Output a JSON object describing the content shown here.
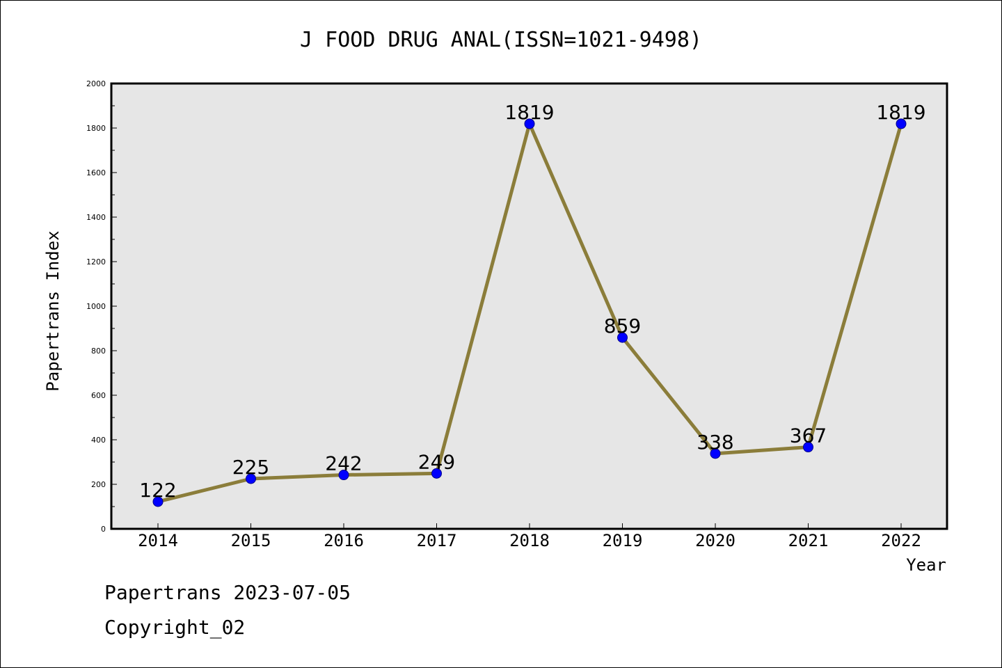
{
  "chart_data": {
    "type": "line",
    "title": "J FOOD DRUG ANAL(ISSN=1021-9498)",
    "xlabel": "Year",
    "ylabel": "Papertrans Index",
    "categories": [
      "2014",
      "2015",
      "2016",
      "2017",
      "2018",
      "2019",
      "2020",
      "2021",
      "2022"
    ],
    "series": [
      {
        "values": [
          122,
          225,
          242,
          249,
          1819,
          859,
          338,
          367,
          1819
        ]
      }
    ],
    "ylim": [
      0,
      2000
    ],
    "yticks": [
      0,
      200,
      400,
      600,
      800,
      1000,
      1200,
      1400,
      1600,
      1800,
      2000
    ],
    "grid": false,
    "data_labels": true,
    "colors": {
      "line": "#8B7D3A",
      "marker": "#0000FF",
      "plot_background": "#E6E6E6"
    }
  },
  "footer": {
    "line1": "Papertrans 2023-07-05",
    "line2": "Copyright_02"
  }
}
